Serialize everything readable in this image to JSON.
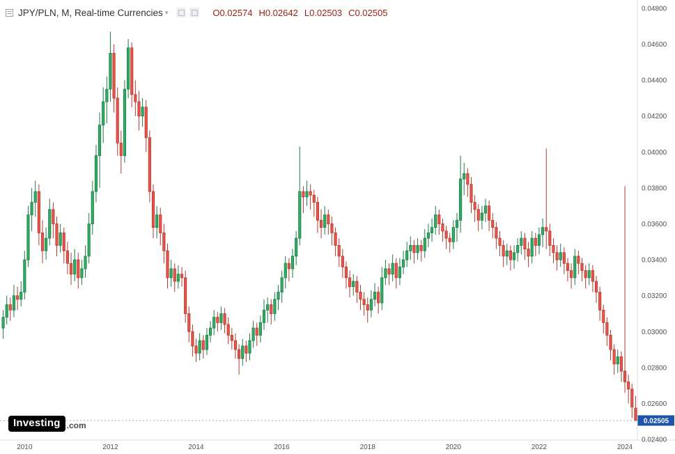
{
  "header": {
    "title": "JPY/PLN, M, Real-time Currencies",
    "ohlc": {
      "open": "O0.02574",
      "high": "H0.02642",
      "low": "L0.02503",
      "close": "C0.02505"
    },
    "ohlc_color": "#9b1c10"
  },
  "logo": {
    "name": "Investing",
    "suffix": ".com"
  },
  "chart_data": {
    "type": "candlestick",
    "symbol": "JPY/PLN",
    "timeframe": "M",
    "title": "JPY/PLN, M, Real-time Currencies",
    "ylim": [
      0.024,
      0.048
    ],
    "y_ticks": [
      "0.02400",
      "0.02600",
      "0.02800",
      "0.03000",
      "0.03200",
      "0.03400",
      "0.03600",
      "0.03800",
      "0.04000",
      "0.04200",
      "0.04400",
      "0.04600",
      "0.04800"
    ],
    "x_ticks": [
      {
        "label": "2010",
        "index": 6
      },
      {
        "label": "2012",
        "index": 30
      },
      {
        "label": "2014",
        "index": 54
      },
      {
        "label": "2016",
        "index": 78
      },
      {
        "label": "2018",
        "index": 102
      },
      {
        "label": "2020",
        "index": 126
      },
      {
        "label": "2022",
        "index": 150
      },
      {
        "label": "2024",
        "index": 174
      }
    ],
    "start": "2009-07",
    "interval": "1M",
    "current_price": 0.02505,
    "current_price_label": "0.02505",
    "colors": {
      "up_fill": "#2fae63",
      "up_stroke": "#1d7a45",
      "down_fill": "#eb5449",
      "down_stroke": "#b03a30",
      "last_price_line": "#a3a9b1",
      "last_price_tag": "#1d56a8",
      "axis_line": "#dcdfe4"
    },
    "candles": [
      [
        0.0302,
        0.0312,
        0.0296,
        0.0308
      ],
      [
        0.0308,
        0.032,
        0.0304,
        0.0315
      ],
      [
        0.0315,
        0.0319,
        0.0306,
        0.0312
      ],
      [
        0.0312,
        0.0326,
        0.0308,
        0.032
      ],
      [
        0.032,
        0.0325,
        0.0312,
        0.0318
      ],
      [
        0.0318,
        0.0328,
        0.0314,
        0.0322
      ],
      [
        0.0322,
        0.0345,
        0.0318,
        0.034
      ],
      [
        0.034,
        0.037,
        0.0336,
        0.0365
      ],
      [
        0.0365,
        0.038,
        0.0356,
        0.0372
      ],
      [
        0.0372,
        0.0384,
        0.0364,
        0.0378
      ],
      [
        0.0378,
        0.0382,
        0.0348,
        0.0355
      ],
      [
        0.0355,
        0.0362,
        0.0338,
        0.0345
      ],
      [
        0.0345,
        0.0358,
        0.034,
        0.0352
      ],
      [
        0.0352,
        0.0374,
        0.0348,
        0.0368
      ],
      [
        0.0368,
        0.0372,
        0.0352,
        0.036
      ],
      [
        0.036,
        0.0364,
        0.0342,
        0.0348
      ],
      [
        0.0348,
        0.036,
        0.0344,
        0.0355
      ],
      [
        0.0355,
        0.0358,
        0.0338,
        0.0345
      ],
      [
        0.0345,
        0.035,
        0.0332,
        0.0338
      ],
      [
        0.0338,
        0.0344,
        0.0326,
        0.0332
      ],
      [
        0.0332,
        0.0346,
        0.0328,
        0.034
      ],
      [
        0.034,
        0.0344,
        0.0324,
        0.033
      ],
      [
        0.033,
        0.034,
        0.0326,
        0.0335
      ],
      [
        0.0335,
        0.0348,
        0.033,
        0.0342
      ],
      [
        0.0342,
        0.0366,
        0.0338,
        0.036
      ],
      [
        0.036,
        0.0384,
        0.0354,
        0.0378
      ],
      [
        0.0378,
        0.0404,
        0.0372,
        0.0398
      ],
      [
        0.0398,
        0.0422,
        0.038,
        0.0415
      ],
      [
        0.0415,
        0.0436,
        0.0405,
        0.0428
      ],
      [
        0.0428,
        0.0442,
        0.0416,
        0.0435
      ],
      [
        0.0435,
        0.0467,
        0.0428,
        0.0455
      ],
      [
        0.0455,
        0.046,
        0.0422,
        0.043
      ],
      [
        0.043,
        0.0436,
        0.0398,
        0.0405
      ],
      [
        0.0405,
        0.0412,
        0.0388,
        0.0398
      ],
      [
        0.0398,
        0.044,
        0.0394,
        0.0435
      ],
      [
        0.0435,
        0.0463,
        0.043,
        0.0458
      ],
      [
        0.0458,
        0.0461,
        0.0425,
        0.0432
      ],
      [
        0.0432,
        0.044,
        0.042,
        0.0428
      ],
      [
        0.0428,
        0.0434,
        0.0412,
        0.042
      ],
      [
        0.042,
        0.043,
        0.0414,
        0.0425
      ],
      [
        0.0425,
        0.0429,
        0.04,
        0.0408
      ],
      [
        0.0408,
        0.0412,
        0.0372,
        0.0378
      ],
      [
        0.0378,
        0.0382,
        0.0352,
        0.0358
      ],
      [
        0.0358,
        0.037,
        0.0352,
        0.0365
      ],
      [
        0.0365,
        0.0369,
        0.0348,
        0.0355
      ],
      [
        0.0355,
        0.036,
        0.0338,
        0.0345
      ],
      [
        0.0345,
        0.0349,
        0.0324,
        0.033
      ],
      [
        0.033,
        0.034,
        0.0325,
        0.0335
      ],
      [
        0.0335,
        0.0338,
        0.0322,
        0.0328
      ],
      [
        0.0328,
        0.0337,
        0.0324,
        0.0332
      ],
      [
        0.0332,
        0.0336,
        0.0325,
        0.033
      ],
      [
        0.033,
        0.0334,
        0.0305,
        0.031
      ],
      [
        0.031,
        0.0314,
        0.0294,
        0.03
      ],
      [
        0.03,
        0.0304,
        0.0286,
        0.0292
      ],
      [
        0.0292,
        0.0296,
        0.0283,
        0.0288
      ],
      [
        0.0288,
        0.0299,
        0.0284,
        0.0295
      ],
      [
        0.0295,
        0.0298,
        0.0285,
        0.029
      ],
      [
        0.029,
        0.0302,
        0.0287,
        0.0298
      ],
      [
        0.0298,
        0.0306,
        0.0294,
        0.0302
      ],
      [
        0.0302,
        0.0312,
        0.0298,
        0.0308
      ],
      [
        0.0308,
        0.0311,
        0.03,
        0.0305
      ],
      [
        0.0305,
        0.0314,
        0.0301,
        0.031
      ],
      [
        0.031,
        0.0313,
        0.0299,
        0.0304
      ],
      [
        0.0304,
        0.0308,
        0.0293,
        0.0298
      ],
      [
        0.0298,
        0.0302,
        0.029,
        0.0295
      ],
      [
        0.0295,
        0.0299,
        0.0285,
        0.029
      ],
      [
        0.029,
        0.0293,
        0.0276,
        0.0285
      ],
      [
        0.0285,
        0.0296,
        0.0281,
        0.0292
      ],
      [
        0.0292,
        0.0295,
        0.0283,
        0.0288
      ],
      [
        0.0288,
        0.0299,
        0.0284,
        0.0295
      ],
      [
        0.0295,
        0.0306,
        0.0291,
        0.0302
      ],
      [
        0.0302,
        0.0305,
        0.0292,
        0.0298
      ],
      [
        0.0298,
        0.0309,
        0.0294,
        0.0305
      ],
      [
        0.0305,
        0.0318,
        0.0301,
        0.0312
      ],
      [
        0.0312,
        0.0319,
        0.0305,
        0.0315
      ],
      [
        0.0315,
        0.0318,
        0.0304,
        0.031
      ],
      [
        0.031,
        0.0322,
        0.0306,
        0.0318
      ],
      [
        0.0318,
        0.0326,
        0.0312,
        0.0322
      ],
      [
        0.0322,
        0.0334,
        0.0316,
        0.033
      ],
      [
        0.033,
        0.0342,
        0.0324,
        0.0338
      ],
      [
        0.0338,
        0.0341,
        0.0328,
        0.0335
      ],
      [
        0.0335,
        0.0346,
        0.033,
        0.0342
      ],
      [
        0.0342,
        0.0356,
        0.0337,
        0.0352
      ],
      [
        0.0352,
        0.0403,
        0.0348,
        0.0378
      ],
      [
        0.0378,
        0.0381,
        0.0366,
        0.0375
      ],
      [
        0.0375,
        0.0384,
        0.037,
        0.0378
      ],
      [
        0.0378,
        0.0382,
        0.0368,
        0.0376
      ],
      [
        0.0376,
        0.0379,
        0.0364,
        0.0372
      ],
      [
        0.0372,
        0.0375,
        0.0355,
        0.0362
      ],
      [
        0.0362,
        0.0368,
        0.0352,
        0.0358
      ],
      [
        0.0358,
        0.037,
        0.0354,
        0.0365
      ],
      [
        0.0365,
        0.0368,
        0.0354,
        0.036
      ],
      [
        0.036,
        0.0364,
        0.0348,
        0.0355
      ],
      [
        0.0355,
        0.0358,
        0.0342,
        0.0348
      ],
      [
        0.0348,
        0.0352,
        0.0336,
        0.0342
      ],
      [
        0.0342,
        0.0346,
        0.033,
        0.0336
      ],
      [
        0.0336,
        0.0339,
        0.0324,
        0.033
      ],
      [
        0.033,
        0.0334,
        0.0319,
        0.0325
      ],
      [
        0.0325,
        0.0332,
        0.032,
        0.0328
      ],
      [
        0.0328,
        0.0331,
        0.0316,
        0.0322
      ],
      [
        0.0322,
        0.0326,
        0.0312,
        0.0318
      ],
      [
        0.0318,
        0.0322,
        0.0309,
        0.0315
      ],
      [
        0.0315,
        0.0319,
        0.0305,
        0.0312
      ],
      [
        0.0312,
        0.0323,
        0.0308,
        0.0318
      ],
      [
        0.0318,
        0.0327,
        0.0314,
        0.0322
      ],
      [
        0.0322,
        0.0325,
        0.031,
        0.0316
      ],
      [
        0.0316,
        0.0336,
        0.0312,
        0.033
      ],
      [
        0.033,
        0.034,
        0.0326,
        0.0335
      ],
      [
        0.0335,
        0.0338,
        0.0326,
        0.0332
      ],
      [
        0.0332,
        0.0343,
        0.0328,
        0.0338
      ],
      [
        0.0338,
        0.0341,
        0.0324,
        0.033
      ],
      [
        0.033,
        0.0341,
        0.0326,
        0.0336
      ],
      [
        0.0336,
        0.0345,
        0.0332,
        0.034
      ],
      [
        0.034,
        0.035,
        0.0336,
        0.0345
      ],
      [
        0.0345,
        0.0353,
        0.034,
        0.0348
      ],
      [
        0.0348,
        0.0351,
        0.0338,
        0.0344
      ],
      [
        0.0344,
        0.0352,
        0.034,
        0.0348
      ],
      [
        0.0348,
        0.0351,
        0.0339,
        0.0345
      ],
      [
        0.0345,
        0.0357,
        0.0341,
        0.0352
      ],
      [
        0.0352,
        0.036,
        0.0347,
        0.0355
      ],
      [
        0.0355,
        0.0363,
        0.035,
        0.0358
      ],
      [
        0.0358,
        0.037,
        0.0354,
        0.0365
      ],
      [
        0.0365,
        0.0368,
        0.0354,
        0.036
      ],
      [
        0.036,
        0.0363,
        0.035,
        0.0356
      ],
      [
        0.0356,
        0.0359,
        0.0346,
        0.0352
      ],
      [
        0.0352,
        0.0355,
        0.0344,
        0.035
      ],
      [
        0.035,
        0.0362,
        0.0346,
        0.0358
      ],
      [
        0.0358,
        0.0366,
        0.035,
        0.0362
      ],
      [
        0.0362,
        0.0398,
        0.0355,
        0.0385
      ],
      [
        0.0385,
        0.0394,
        0.0376,
        0.0388
      ],
      [
        0.0388,
        0.0391,
        0.0375,
        0.0382
      ],
      [
        0.0382,
        0.0386,
        0.0366,
        0.0372
      ],
      [
        0.0372,
        0.0376,
        0.0361,
        0.0368
      ],
      [
        0.0368,
        0.0371,
        0.0356,
        0.0362
      ],
      [
        0.0362,
        0.037,
        0.0357,
        0.0366
      ],
      [
        0.0366,
        0.0374,
        0.0361,
        0.037
      ],
      [
        0.037,
        0.0373,
        0.0356,
        0.0362
      ],
      [
        0.0362,
        0.0366,
        0.0352,
        0.0358
      ],
      [
        0.0358,
        0.0361,
        0.0346,
        0.0352
      ],
      [
        0.0352,
        0.0356,
        0.0342,
        0.0348
      ],
      [
        0.0348,
        0.0351,
        0.0336,
        0.0342
      ],
      [
        0.0342,
        0.0349,
        0.0337,
        0.0345
      ],
      [
        0.0345,
        0.0348,
        0.0334,
        0.034
      ],
      [
        0.034,
        0.0348,
        0.0335,
        0.0344
      ],
      [
        0.0344,
        0.0352,
        0.0339,
        0.0348
      ],
      [
        0.0348,
        0.0356,
        0.0343,
        0.0352
      ],
      [
        0.0352,
        0.0355,
        0.034,
        0.0346
      ],
      [
        0.0346,
        0.035,
        0.0336,
        0.0342
      ],
      [
        0.0342,
        0.0356,
        0.0338,
        0.0352
      ],
      [
        0.0352,
        0.0355,
        0.0342,
        0.0348
      ],
      [
        0.0348,
        0.0358,
        0.0343,
        0.0354
      ],
      [
        0.0354,
        0.0363,
        0.0347,
        0.0358
      ],
      [
        0.0358,
        0.0402,
        0.0346,
        0.0356
      ],
      [
        0.0356,
        0.036,
        0.0342,
        0.0348
      ],
      [
        0.0348,
        0.0352,
        0.0338,
        0.0344
      ],
      [
        0.0344,
        0.0348,
        0.0334,
        0.034
      ],
      [
        0.034,
        0.0349,
        0.0336,
        0.0344
      ],
      [
        0.0344,
        0.0347,
        0.0332,
        0.0338
      ],
      [
        0.0338,
        0.0341,
        0.0328,
        0.0334
      ],
      [
        0.0334,
        0.0338,
        0.0324,
        0.033
      ],
      [
        0.033,
        0.0346,
        0.0326,
        0.0342
      ],
      [
        0.0342,
        0.0345,
        0.0332,
        0.0338
      ],
      [
        0.0338,
        0.0341,
        0.0328,
        0.0334
      ],
      [
        0.0334,
        0.0337,
        0.0324,
        0.033
      ],
      [
        0.033,
        0.0338,
        0.0326,
        0.0334
      ],
      [
        0.0334,
        0.0337,
        0.0322,
        0.0328
      ],
      [
        0.0328,
        0.0331,
        0.0316,
        0.0322
      ],
      [
        0.0322,
        0.0325,
        0.0306,
        0.0312
      ],
      [
        0.0312,
        0.0315,
        0.0299,
        0.0305
      ],
      [
        0.0305,
        0.0308,
        0.0292,
        0.0298
      ],
      [
        0.0298,
        0.0301,
        0.0284,
        0.029
      ],
      [
        0.029,
        0.0293,
        0.0276,
        0.0282
      ],
      [
        0.0282,
        0.029,
        0.0277,
        0.0286
      ],
      [
        0.0286,
        0.0289,
        0.0272,
        0.0278
      ],
      [
        0.0278,
        0.0381,
        0.0266,
        0.0272
      ],
      [
        0.0272,
        0.0276,
        0.026,
        0.0268
      ],
      [
        0.0268,
        0.0271,
        0.0252,
        0.0258
      ],
      [
        0.02574,
        0.02642,
        0.02503,
        0.02505
      ]
    ]
  }
}
